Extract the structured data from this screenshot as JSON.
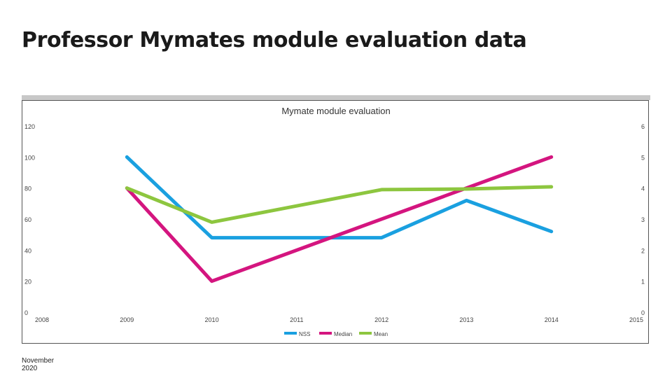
{
  "slide": {
    "title": "Professor Mymates module evaluation data",
    "footer_date": "November 2020"
  },
  "chart_data": {
    "type": "line",
    "title": "Mymate module evaluation",
    "xlabel": "",
    "ylabel": "",
    "xlim": [
      2008,
      2015
    ],
    "x_ticks": [
      "2008",
      "2009",
      "2010",
      "2011",
      "2012",
      "2013",
      "2014",
      "2015"
    ],
    "ylim": [
      0,
      120
    ],
    "y_ticks": [
      "0",
      "20",
      "40",
      "60",
      "80",
      "100",
      "120"
    ],
    "y2lim": [
      0,
      6
    ],
    "y2_ticks": [
      "0",
      "1",
      "2",
      "3",
      "4",
      "5",
      "6"
    ],
    "grid": false,
    "legend_position": "bottom",
    "series": [
      {
        "name": "NSS",
        "color": "#1aa0e0",
        "axis": "left",
        "points": [
          [
            2009,
            100
          ],
          [
            2010,
            48
          ],
          [
            2012,
            48
          ],
          [
            2013,
            72
          ],
          [
            2014,
            52
          ]
        ]
      },
      {
        "name": "Median",
        "color": "#d4157f",
        "axis": "right",
        "points": [
          [
            2009,
            4
          ],
          [
            2010,
            1
          ],
          [
            2014,
            5
          ]
        ]
      },
      {
        "name": "Mean",
        "color": "#8dc63f",
        "axis": "right",
        "points": [
          [
            2009,
            4
          ],
          [
            2010,
            2.9
          ],
          [
            2012,
            3.95
          ],
          [
            2013,
            3.97
          ],
          [
            2014,
            4.04
          ]
        ]
      }
    ]
  }
}
